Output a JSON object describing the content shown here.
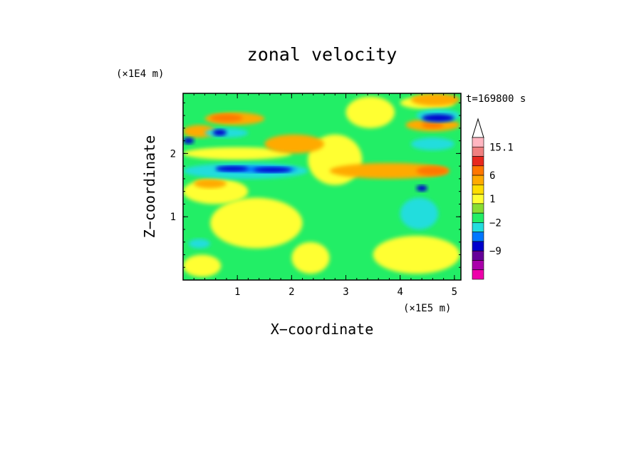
{
  "chart_data": {
    "type": "heatmap",
    "title": "zonal velocity",
    "xlabel": "X−coordinate",
    "ylabel": "Z−coordinate",
    "x_unit": "(×1E5 m)",
    "y_unit": "(×1E4 m)",
    "time_label": "t=169800 s",
    "xlim": [
      0,
      5.12
    ],
    "ylim": [
      0,
      2.95
    ],
    "x_ticks": [
      1,
      2,
      3,
      4,
      5
    ],
    "y_ticks": [
      1,
      2
    ],
    "x_tick_labels": [
      "1",
      "2",
      "3",
      "4",
      "5"
    ],
    "y_tick_labels": [
      "1",
      "2"
    ],
    "colorbar": {
      "labels": [
        {
          "value": 15.1,
          "text": "15.1"
        },
        {
          "value": 6,
          "text": "6"
        },
        {
          "value": 1,
          "text": "1"
        },
        {
          "value": -2,
          "text": "−2"
        },
        {
          "value": -9,
          "text": "−9"
        }
      ],
      "bins": [
        {
          "color": "#ffb6c1"
        },
        {
          "color": "#f08080"
        },
        {
          "color": "#e8281e"
        },
        {
          "color": "#ff7700"
        },
        {
          "color": "#ffaa00"
        },
        {
          "color": "#ffdd00"
        },
        {
          "color": "#ffff33"
        },
        {
          "color": "#88dd33"
        },
        {
          "color": "#22ee66"
        },
        {
          "color": "#22dddd"
        },
        {
          "color": "#0077ff"
        },
        {
          "color": "#0000cc"
        },
        {
          "color": "#660099"
        },
        {
          "color": "#aa00aa"
        },
        {
          "color": "#ee00aa"
        }
      ],
      "extend_color": "#ffffff"
    },
    "field": {
      "regions": [
        {
          "level": "green",
          "color": "#22ee66",
          "x": [
            0.0,
            5.12
          ],
          "z": [
            0.0,
            2.95
          ]
        },
        {
          "level": "yellow",
          "color": "#ffff33",
          "x": [
            0.0,
            0.7
          ],
          "z": [
            0.05,
            0.4
          ]
        },
        {
          "level": "yellow",
          "color": "#ffff33",
          "x": [
            0.5,
            2.2
          ],
          "z": [
            0.5,
            1.3
          ]
        },
        {
          "level": "yellow",
          "color": "#ffff33",
          "x": [
            2.3,
            3.3
          ],
          "z": [
            1.5,
            2.3
          ]
        },
        {
          "level": "yellow",
          "color": "#ffff33",
          "x": [
            3.0,
            3.9
          ],
          "z": [
            2.4,
            2.9
          ]
        },
        {
          "level": "yellow",
          "color": "#ffff33",
          "x": [
            0.0,
            1.2
          ],
          "z": [
            1.2,
            1.6
          ]
        },
        {
          "level": "yellow",
          "color": "#ffff33",
          "x": [
            2.0,
            2.7
          ],
          "z": [
            0.1,
            0.6
          ]
        },
        {
          "level": "yellow",
          "color": "#ffff33",
          "x": [
            3.5,
            5.1
          ],
          "z": [
            0.1,
            0.7
          ]
        },
        {
          "level": "yellow",
          "color": "#ffff33",
          "x": [
            0.0,
            2.0
          ],
          "z": [
            1.9,
            2.1
          ]
        },
        {
          "level": "yellow",
          "color": "#ffff33",
          "x": [
            4.0,
            5.0
          ],
          "z": [
            2.7,
            2.9
          ]
        },
        {
          "level": "orange",
          "color": "#ffaa00",
          "x": [
            0.4,
            1.5
          ],
          "z": [
            2.45,
            2.65
          ]
        },
        {
          "level": "orange",
          "color": "#ffaa00",
          "x": [
            1.5,
            2.6
          ],
          "z": [
            2.0,
            2.3
          ]
        },
        {
          "level": "orange",
          "color": "#ffaa00",
          "x": [
            2.7,
            4.9
          ],
          "z": [
            1.6,
            1.85
          ]
        },
        {
          "level": "orange",
          "color": "#ffaa00",
          "x": [
            4.1,
            5.1
          ],
          "z": [
            2.35,
            2.55
          ]
        },
        {
          "level": "orange",
          "color": "#ffaa00",
          "x": [
            4.2,
            5.1
          ],
          "z": [
            2.75,
            2.95
          ]
        },
        {
          "level": "orange",
          "color": "#ffaa00",
          "x": [
            0.2,
            0.8
          ],
          "z": [
            1.45,
            1.6
          ]
        },
        {
          "level": "orange",
          "color": "#ffaa00",
          "x": [
            0.0,
            0.6
          ],
          "z": [
            2.25,
            2.45
          ]
        },
        {
          "level": "dark-orange",
          "color": "#ff7700",
          "x": [
            0.5,
            1.1
          ],
          "z": [
            2.5,
            2.62
          ]
        },
        {
          "level": "dark-orange",
          "color": "#ff7700",
          "x": [
            4.3,
            4.9
          ],
          "z": [
            1.65,
            1.8
          ]
        },
        {
          "level": "dark-orange",
          "color": "#ff7700",
          "x": [
            4.4,
            4.8
          ],
          "z": [
            2.4,
            2.5
          ]
        },
        {
          "level": "cyan",
          "color": "#22dddd",
          "x": [
            0.4,
            1.2
          ],
          "z": [
            2.25,
            2.4
          ]
        },
        {
          "level": "cyan",
          "color": "#22dddd",
          "x": [
            0.0,
            2.3
          ],
          "z": [
            1.6,
            1.85
          ]
        },
        {
          "level": "cyan",
          "color": "#22dddd",
          "x": [
            4.3,
            5.1
          ],
          "z": [
            2.5,
            2.7
          ]
        },
        {
          "level": "cyan",
          "color": "#22dddd",
          "x": [
            4.2,
            5.0
          ],
          "z": [
            2.05,
            2.25
          ]
        },
        {
          "level": "cyan",
          "color": "#22dddd",
          "x": [
            4.0,
            4.7
          ],
          "z": [
            0.8,
            1.3
          ]
        },
        {
          "level": "cyan",
          "color": "#22dddd",
          "x": [
            0.1,
            0.5
          ],
          "z": [
            0.5,
            0.65
          ]
        },
        {
          "level": "blue",
          "color": "#0077ff",
          "x": [
            0.6,
            2.1
          ],
          "z": [
            1.7,
            1.8
          ]
        },
        {
          "level": "dark-blue",
          "color": "#0000cc",
          "x": [
            0.6,
            1.2
          ],
          "z": [
            1.72,
            1.8
          ]
        },
        {
          "level": "dark-blue",
          "color": "#0000cc",
          "x": [
            1.3,
            2.0
          ],
          "z": [
            1.7,
            1.78
          ]
        },
        {
          "level": "dark-blue",
          "color": "#0000cc",
          "x": [
            4.4,
            5.0
          ],
          "z": [
            2.5,
            2.62
          ]
        },
        {
          "level": "dark-blue",
          "color": "#0000cc",
          "x": [
            0.55,
            0.8
          ],
          "z": [
            2.28,
            2.38
          ]
        },
        {
          "level": "dark-blue",
          "color": "#0000cc",
          "x": [
            0.0,
            0.2
          ],
          "z": [
            2.15,
            2.25
          ]
        },
        {
          "level": "dark-blue",
          "color": "#0000cc",
          "x": [
            4.3,
            4.5
          ],
          "z": [
            1.4,
            1.5
          ]
        }
      ]
    }
  }
}
